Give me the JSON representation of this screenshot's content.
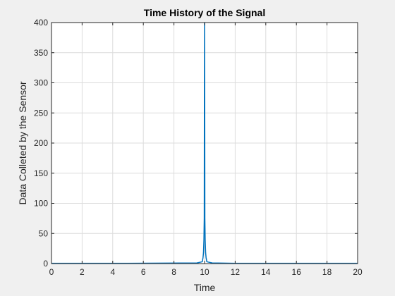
{
  "chart_data": {
    "type": "line",
    "title": "Time History of the Signal",
    "xlabel": "Time",
    "ylabel": "Data Colleted by the Sensor",
    "xlim": [
      0,
      20
    ],
    "ylim": [
      0,
      400
    ],
    "xticks": [
      "0",
      "2",
      "4",
      "6",
      "8",
      "10",
      "12",
      "14",
      "16",
      "18",
      "20"
    ],
    "yticks": [
      "0",
      "50",
      "100",
      "150",
      "200",
      "250",
      "300",
      "350",
      "400"
    ],
    "grid": true,
    "series": [
      {
        "color": "#0072bd",
        "x": [
          0,
          5,
          9.5,
          9.85,
          9.9,
          9.93,
          9.96,
          9.98,
          9.99,
          10.0,
          10.01,
          10.02,
          10.04,
          10.07,
          10.1,
          10.15,
          10.5,
          12,
          20
        ],
        "y": [
          0.5,
          0.5,
          1,
          3,
          10,
          18,
          40,
          75,
          277,
          400,
          277,
          75,
          40,
          18,
          10,
          3,
          1,
          0.5,
          0.5
        ]
      }
    ]
  }
}
